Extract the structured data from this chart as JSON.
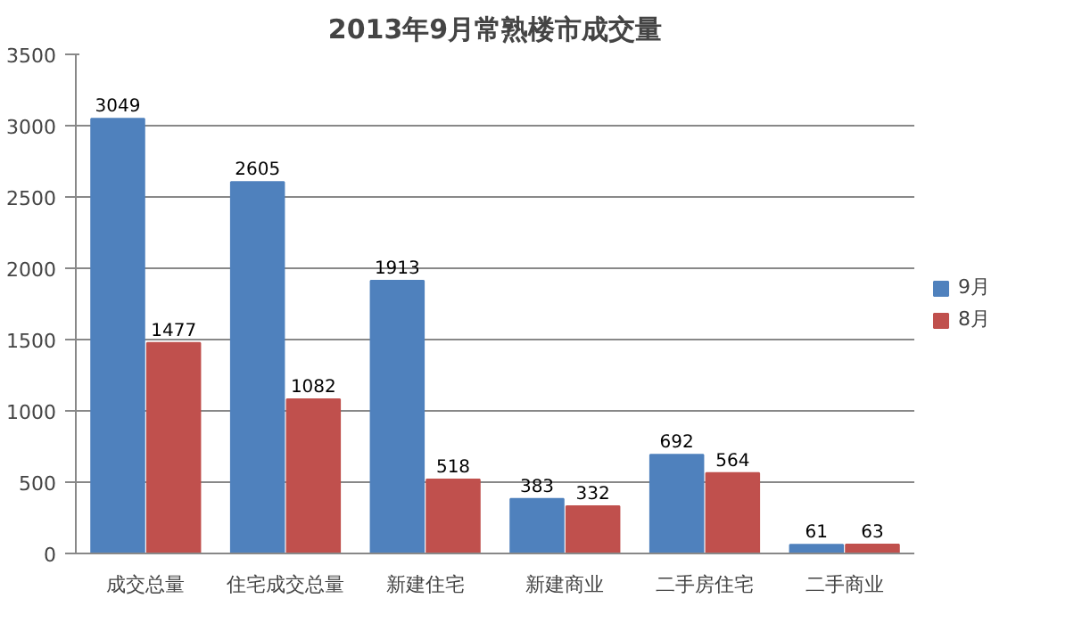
{
  "chart_data": {
    "type": "bar",
    "title": "2013年9月常熟楼市成交量",
    "categories": [
      "成交总量",
      "住宅成交总量",
      "新建住宅",
      "新建商业",
      "二手房住宅",
      "二手商业"
    ],
    "series": [
      {
        "name": "9月",
        "color": "#4f81bd",
        "values": [
          3049,
          2605,
          1913,
          383,
          692,
          61
        ]
      },
      {
        "name": "8月",
        "color": "#c0504d",
        "values": [
          1477,
          1082,
          518,
          332,
          564,
          63
        ]
      }
    ],
    "ylim": [
      0,
      3500
    ],
    "yticks": [
      0,
      500,
      1000,
      1500,
      2000,
      2500,
      3000,
      3500
    ],
    "grid": "y",
    "legend": "right",
    "data_labels": true
  }
}
